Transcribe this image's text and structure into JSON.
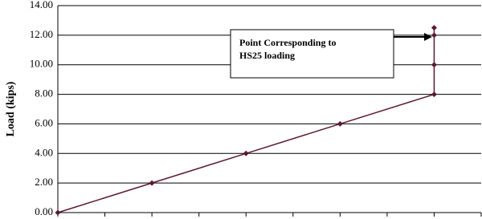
{
  "chart_data": {
    "type": "line",
    "y_label": "Load (kips)",
    "annotation": [
      "Point Corresponding to",
      "HS25 loading"
    ],
    "x": [
      0,
      2,
      4,
      6,
      8,
      8,
      8,
      8
    ],
    "series": [
      {
        "color": "#5b1a2e",
        "values": [
          0,
          2,
          4,
          6,
          8,
          10,
          12,
          12.5
        ]
      }
    ],
    "xlim": [
      0,
      9
    ],
    "xticks": [
      0,
      1,
      2,
      3,
      4,
      5,
      6,
      7,
      8,
      9
    ],
    "ylim": [
      0,
      14
    ],
    "yticks": [
      {
        "value": 0,
        "label": "0.00"
      },
      {
        "value": 2,
        "label": "2.00"
      },
      {
        "value": 4,
        "label": "4.00"
      },
      {
        "value": 6,
        "label": "6.00"
      },
      {
        "value": 8,
        "label": "8.00"
      },
      {
        "value": 10,
        "label": "10.00"
      },
      {
        "value": 12,
        "label": "12.00"
      },
      {
        "value": 14,
        "label": "14.00"
      }
    ],
    "grid": true
  }
}
